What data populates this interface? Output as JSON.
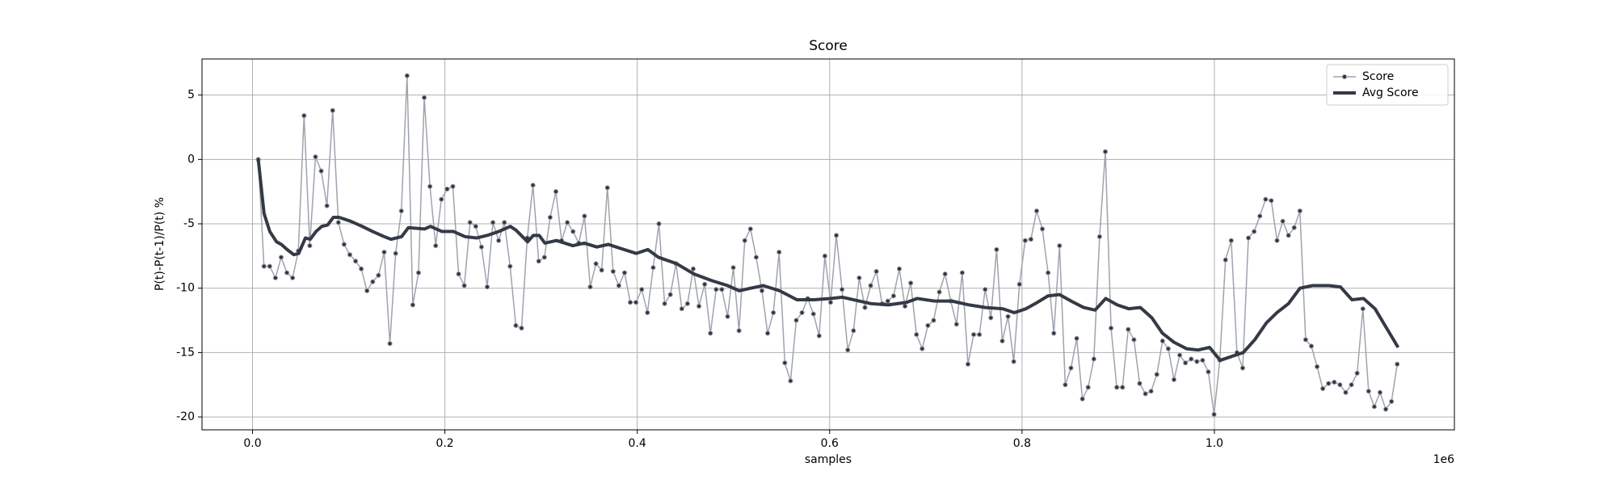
{
  "chart_data": {
    "type": "line",
    "title": "Score",
    "xlabel": "samples",
    "ylabel": "P(t)-P(t-1)/P(t) %",
    "x_offset_label": "1e6",
    "xlim": [
      -52500,
      1249500
    ],
    "ylim": [
      -21,
      7.8
    ],
    "xticks": [
      {
        "value": 0,
        "label": "0.0"
      },
      {
        "value": 200000,
        "label": "0.2"
      },
      {
        "value": 400000,
        "label": "0.4"
      },
      {
        "value": 600000,
        "label": "0.6"
      },
      {
        "value": 800000,
        "label": "0.8"
      },
      {
        "value": 1000000,
        "label": "1.0"
      }
    ],
    "yticks": [
      -20,
      -15,
      -10,
      -5,
      0,
      5
    ],
    "grid": true,
    "legend": "upper right",
    "series": [
      {
        "name": "Score",
        "color": "#9ea3ad",
        "marker_color": "#2f3540",
        "marker": true,
        "line_width": 1.5,
        "x": [
          6000,
          11950,
          17900,
          23850,
          29800,
          35750,
          41700,
          47650,
          53600,
          59550,
          65500,
          71450,
          77400,
          83350,
          89300,
          95250,
          101200,
          107150,
          113100,
          119050,
          125000,
          130950,
          136900,
          142850,
          148800,
          154750,
          160700,
          166650,
          172600,
          178550,
          184500,
          190450,
          196400,
          202350,
          208300,
          214250,
          220200,
          226150,
          232100,
          238050,
          244000,
          249950,
          255900,
          261850,
          267800,
          273750,
          279700,
          285650,
          291600,
          297550,
          303500,
          309450,
          315400,
          321350,
          327300,
          333250,
          339200,
          345150,
          351100,
          357050,
          363000,
          368950,
          374900,
          380850,
          386800,
          392750,
          398700,
          404650,
          410600,
          416550,
          422500,
          428450,
          434400,
          440350,
          446300,
          452250,
          458200,
          464150,
          470100,
          476050,
          482000,
          487950,
          493900,
          499850,
          505800,
          511750,
          517700,
          523650,
          529600,
          535550,
          541500,
          547450,
          553400,
          559350,
          565300,
          571250,
          577200,
          583150,
          589100,
          595050,
          601000,
          606950,
          612900,
          618850,
          624800,
          630750,
          636700,
          642650,
          648600,
          654550,
          660500,
          666450,
          672400,
          678350,
          684300,
          690250,
          696200,
          702150,
          708100,
          714050,
          720000,
          725950,
          731900,
          737850,
          743800,
          749750,
          755700,
          761650,
          767600,
          773550,
          779500,
          785450,
          791400,
          797350,
          803300,
          809250,
          815200,
          821150,
          827100,
          833050,
          839000,
          844950,
          850900,
          856850,
          862800,
          868750,
          874700,
          880650,
          886600,
          892550,
          898500,
          904450,
          910400,
          916350,
          922300,
          928250,
          934200,
          940150,
          946100,
          952050,
          958000,
          963950,
          969900,
          975850,
          981800,
          987750,
          993700,
          999650,
          1005600,
          1011550,
          1017500,
          1023450,
          1029400,
          1035350,
          1041300,
          1047250,
          1053200,
          1059150,
          1065100,
          1071050,
          1077000,
          1082950,
          1088900,
          1094850,
          1100800,
          1106750,
          1112700,
          1118650,
          1124600,
          1130550,
          1136500,
          1142450,
          1148400,
          1154350,
          1160300,
          1166250,
          1172200,
          1178150,
          1184100,
          1190050
        ],
        "values": [
          0,
          -8.3,
          -8.3,
          -9.2,
          -7.6,
          -8.8,
          -9.2,
          -7.1,
          3.4,
          -6.7,
          0.2,
          -0.9,
          -3.6,
          3.8,
          -4.9,
          -6.6,
          -7.4,
          -7.9,
          -8.5,
          -10.2,
          -9.5,
          -9.0,
          -7.2,
          -14.3,
          -7.3,
          -4.0,
          6.5,
          -11.3,
          -8.8,
          4.8,
          -2.1,
          -6.7,
          -3.1,
          -2.3,
          -2.1,
          -8.9,
          -9.8,
          -4.9,
          -5.2,
          -6.8,
          -9.9,
          -4.9,
          -6.3,
          -4.9,
          -8.3,
          -12.9,
          -13.1,
          -6.1,
          -2.0,
          -7.9,
          -7.6,
          -4.5,
          -2.5,
          -6.3,
          -4.9,
          -5.6,
          -6.5,
          -4.4,
          -9.9,
          -8.1,
          -8.6,
          -2.2,
          -8.7,
          -9.8,
          -8.8,
          -11.1,
          -11.1,
          -10.1,
          -11.9,
          -8.4,
          -5.0,
          -11.2,
          -10.5,
          -8.1,
          -11.6,
          -11.2,
          -8.5,
          -11.4,
          -9.7,
          -13.5,
          -10.1,
          -10.1,
          -12.2,
          -8.4,
          -13.3,
          -6.3,
          -5.4,
          -7.6,
          -10.2,
          -13.5,
          -11.9,
          -7.2,
          -15.8,
          -17.2,
          -12.5,
          -11.9,
          -10.8,
          -12.0,
          -13.7,
          -7.5,
          -11.1,
          -5.9,
          -10.1,
          -14.8,
          -13.3,
          -9.2,
          -11.5,
          -9.8,
          -8.7,
          -11.2,
          -11.0,
          -10.6,
          -8.5,
          -11.4,
          -9.6,
          -13.6,
          -14.7,
          -12.9,
          -12.5,
          -10.3,
          -8.9,
          -11.0,
          -12.8,
          -8.8,
          -15.9,
          -13.6,
          -13.6,
          -10.1,
          -12.3,
          -7.0,
          -14.1,
          -12.2,
          -15.7,
          -9.7,
          -6.3,
          -6.2,
          -4.0,
          -5.4,
          -8.8,
          -13.5,
          -6.7,
          -17.5,
          -16.2,
          -13.9,
          -18.6,
          -17.7,
          -15.5,
          -6.0,
          0.6,
          -13.1,
          -17.7,
          -17.7,
          -13.2,
          -14.0,
          -17.4,
          -18.2,
          -18.0,
          -16.7,
          -14.1,
          -14.7,
          -17.1,
          -15.2,
          -15.8,
          -15.5,
          -15.7,
          -15.6,
          -16.5,
          -19.8,
          -15.6,
          -7.8,
          -6.3,
          -15.0,
          -16.2,
          -6.1,
          -5.6,
          -4.4,
          -3.1,
          -3.2,
          -6.3,
          -4.8,
          -5.9,
          -5.3,
          -4.0,
          -14.0,
          -14.5,
          -16.1,
          -17.8,
          -17.4,
          -17.3,
          -17.5,
          -18.1,
          -17.5,
          -16.6,
          -11.6,
          -18.0,
          -19.2,
          -18.1,
          -19.4,
          -18.8,
          -15.9
        ]
      },
      {
        "name": "Avg Score",
        "color": "#343a45",
        "marker": false,
        "line_width": 4,
        "x": [
          6000,
          12000,
          18000,
          25000,
          30000,
          36000,
          43000,
          48000,
          55000,
          60000,
          66000,
          72000,
          78000,
          84000,
          90000,
          102000,
          114000,
          125000,
          137000,
          144000,
          155000,
          162000,
          179000,
          185000,
          197000,
          209000,
          221000,
          233000,
          244000,
          256000,
          268000,
          274000,
          286000,
          292000,
          298000,
          304000,
          316000,
          333000,
          345000,
          358000,
          370000,
          382000,
          399000,
          411000,
          422000,
          441000,
          459000,
          477000,
          494000,
          506000,
          518000,
          531000,
          548000,
          566000,
          584000,
          601000,
          613000,
          625000,
          643000,
          661000,
          680000,
          691000,
          709000,
          727000,
          745000,
          762000,
          780000,
          792000,
          804000,
          816000,
          827000,
          839000,
          851000,
          864000,
          876000,
          887000,
          899000,
          911000,
          923000,
          935000,
          946000,
          958000,
          971000,
          983000,
          995000,
          1006000,
          1018000,
          1030000,
          1042000,
          1054000,
          1065000,
          1077000,
          1089000,
          1102000,
          1119000,
          1131000,
          1137000,
          1143000,
          1155000,
          1167000,
          1179000,
          1191000
        ],
        "values": [
          0,
          -4.2,
          -5.6,
          -6.4,
          -6.6,
          -7.0,
          -7.4,
          -7.3,
          -6.1,
          -6.2,
          -5.6,
          -5.2,
          -5.1,
          -4.5,
          -4.5,
          -4.8,
          -5.2,
          -5.6,
          -6.0,
          -6.2,
          -6.0,
          -5.3,
          -5.4,
          -5.2,
          -5.6,
          -5.6,
          -6.0,
          -6.1,
          -5.9,
          -5.6,
          -5.2,
          -5.5,
          -6.4,
          -5.9,
          -5.9,
          -6.5,
          -6.3,
          -6.7,
          -6.5,
          -6.8,
          -6.6,
          -6.9,
          -7.3,
          -7.0,
          -7.6,
          -8.1,
          -8.9,
          -9.4,
          -9.8,
          -10.2,
          -10.0,
          -9.8,
          -10.2,
          -10.9,
          -10.9,
          -10.8,
          -10.7,
          -10.9,
          -11.2,
          -11.3,
          -11.1,
          -10.8,
          -11.0,
          -11.0,
          -11.3,
          -11.5,
          -11.6,
          -11.9,
          -11.6,
          -11.1,
          -10.6,
          -10.5,
          -11.0,
          -11.5,
          -11.7,
          -10.8,
          -11.3,
          -11.6,
          -11.5,
          -12.3,
          -13.5,
          -14.2,
          -14.7,
          -14.8,
          -14.6,
          -15.6,
          -15.3,
          -15.0,
          -14.0,
          -12.7,
          -11.9,
          -11.2,
          -10.0,
          -9.8,
          -9.8,
          -9.9,
          -10.4,
          -10.9,
          -10.8,
          -11.6,
          -13.1,
          -14.6
        ]
      }
    ]
  }
}
